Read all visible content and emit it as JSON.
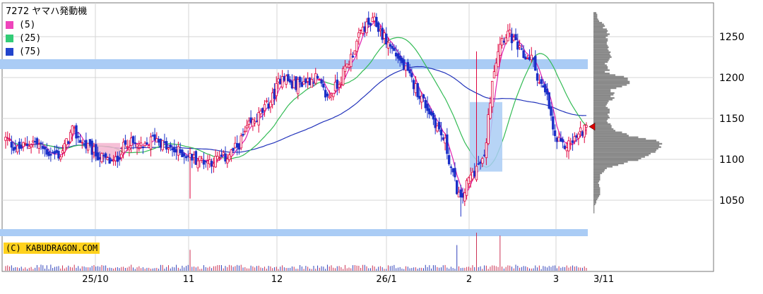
{
  "chart_data": {
    "type": "candlestick",
    "title": "7272 ヤマハ発動機",
    "credit": "(C) KABUDRAGON.COM",
    "as_of_label": "3/11",
    "y_ticks": [
      1050,
      1100,
      1150,
      1200,
      1250
    ],
    "y_range": [
      1000,
      1300
    ],
    "x_ticks": [
      "25/10",
      "11",
      "12",
      "26/1",
      "2",
      "3"
    ],
    "grid": true,
    "legend_position": "top-left",
    "legend": [
      {
        "name": "(5)",
        "color": "#ee44bb"
      },
      {
        "name": "(25)",
        "color": "#33cc77"
      },
      {
        "name": "(75)",
        "color": "#2244cc"
      }
    ],
    "colors": {
      "up_candle": "#e0003c",
      "down_candle": "#1a2fc8",
      "ma5": "#e020b0",
      "ma25": "#33bb55",
      "ma75": "#2233bb",
      "volume_profile": "#888888",
      "highlight_band": "#aaccf5",
      "current_marker": "#dd0000",
      "credit_bg": "#ffd21e",
      "grid": "#d4d4d4"
    },
    "current_price": 1140
  }
}
